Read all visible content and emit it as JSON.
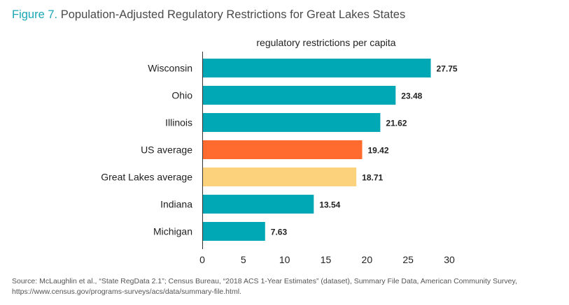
{
  "figure": {
    "number": "Figure 7.",
    "title": "Population-Adjusted Regulatory Restrictions for Great Lakes States"
  },
  "chart_data": {
    "type": "bar",
    "orientation": "horizontal",
    "title": "regulatory restrictions per capita",
    "categories": [
      "Wisconsin",
      "Ohio",
      "Illinois",
      "US average",
      "Great Lakes average",
      "Indiana",
      "Michigan"
    ],
    "values": [
      27.75,
      23.48,
      21.62,
      19.42,
      18.71,
      13.54,
      7.63
    ],
    "value_labels": [
      "27.75",
      "23.48",
      "21.62",
      "19.42",
      "18.71",
      "13.54",
      "7.63"
    ],
    "colors": [
      "#00a8b5",
      "#00a8b5",
      "#00a8b5",
      "#ff6a2e",
      "#fcd37c",
      "#00a8b5",
      "#00a8b5"
    ],
    "xlim": [
      0,
      30
    ],
    "xticks": [
      0,
      5,
      10,
      15,
      20,
      25,
      30
    ],
    "xlabel": "",
    "ylabel": "",
    "grid": false,
    "legend": "none"
  },
  "source": "Source: McLaughlin et al., “State RegData 2.1”; Census Bureau, “2018 ACS 1-Year Estimates” (dataset), Summary File Data, American Community Survey, https://www.census.gov/programs-surveys/acs/data/summary-file.html."
}
